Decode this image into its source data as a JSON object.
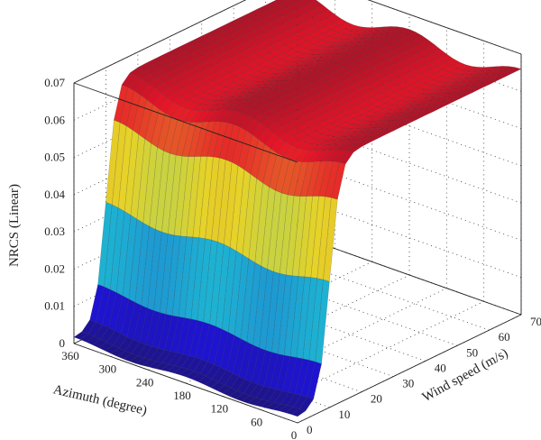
{
  "chart_data": {
    "type": "surface3d",
    "title": "",
    "zlabel": "NRCS (Linear)",
    "xlabel": "Azimuth (degree)",
    "ylabel": "Wind speed (m/s)",
    "z_ticks": [
      "0",
      "0.01",
      "0.02",
      "0.03",
      "0.04",
      "0.05",
      "0.06",
      "0.07"
    ],
    "azimuth_ticks": [
      "360",
      "300",
      "240",
      "180",
      "120",
      "60",
      "0"
    ],
    "wind_ticks": [
      "0",
      "10",
      "20",
      "30",
      "40",
      "50",
      "60",
      "70"
    ],
    "zlim": [
      0,
      0.07
    ],
    "azimuth_range": [
      0,
      360
    ],
    "wind_range": [
      0,
      70
    ],
    "grid": true,
    "colormap": "jet",
    "surface": {
      "description_free": true,
      "azimuth_samples": [
        0,
        10,
        20,
        30,
        40,
        50,
        60,
        70,
        80,
        90,
        100,
        110,
        120,
        130,
        140,
        150,
        160,
        170,
        180,
        190,
        200,
        210,
        220,
        230,
        240,
        250,
        260,
        270,
        280,
        290,
        300,
        310,
        320,
        330,
        340,
        350,
        360
      ],
      "wind_samples": [
        0,
        2.5,
        5,
        7.5,
        10,
        12.5,
        15,
        17.5,
        20,
        22.5,
        25,
        27.5,
        30,
        32.5,
        35,
        37.5,
        40,
        42.5,
        45,
        47.5,
        50,
        52.5,
        55,
        57.5,
        60,
        62.5,
        65,
        67.5,
        70
      ],
      "plateau_value": 0.066,
      "base_value": 0.001,
      "transition_wind_speed": 10,
      "azimuth_modulation_peak": 180
    }
  }
}
